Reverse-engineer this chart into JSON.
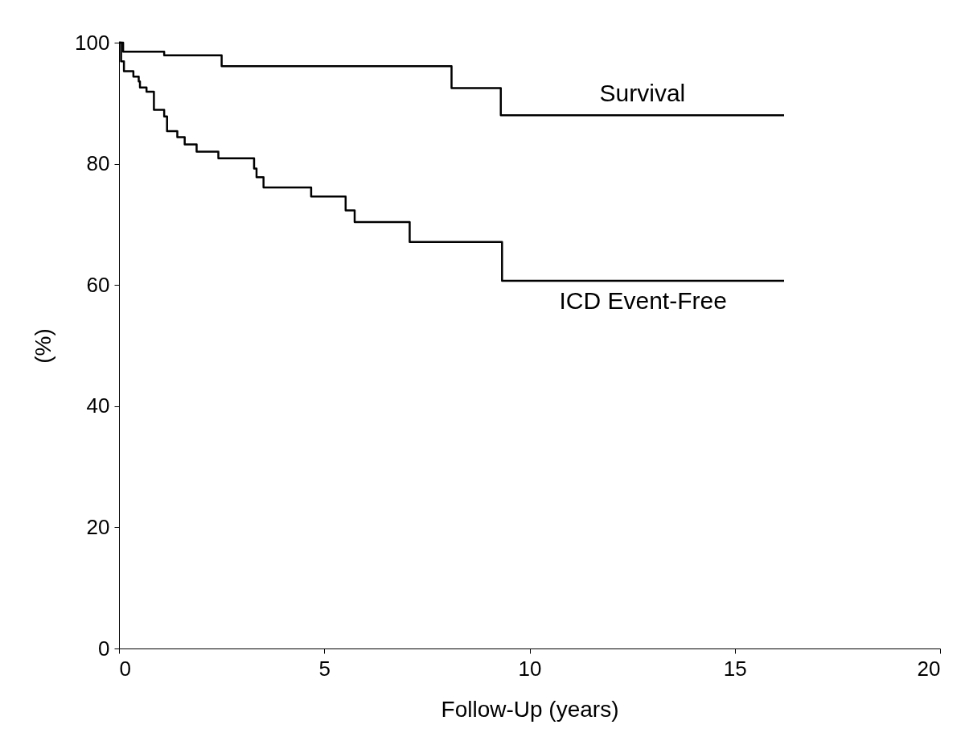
{
  "chart_data": {
    "type": "step",
    "xlabel": "Follow-Up (years)",
    "ylabel": "(%)",
    "xlim": [
      0,
      20
    ],
    "xticks": [
      0,
      5,
      10,
      15,
      20
    ],
    "ylim": [
      0,
      100
    ],
    "yticks": [
      0,
      20,
      40,
      60,
      80,
      100
    ],
    "grid": false,
    "marker": "none",
    "line_style": "solid",
    "series": [
      {
        "name": "Survival",
        "color": "#000000",
        "x": [
          0,
          0.1,
          1.1,
          2.5,
          8.1,
          9.3,
          16.2
        ],
        "values": [
          100,
          98.5,
          97.9,
          96.1,
          92.5,
          88.0,
          88.0
        ]
      },
      {
        "name": "ICD Event-Free",
        "color": "#000000",
        "x": [
          0,
          0.05,
          0.12,
          0.35,
          0.48,
          0.51,
          0.67,
          0.85,
          1.1,
          1.17,
          1.42,
          1.6,
          1.89,
          2.42,
          3.29,
          3.35,
          3.52,
          4.68,
          5.52,
          5.74,
          7.08,
          9.33,
          16.2
        ],
        "values": [
          100,
          96.9,
          95.3,
          94.4,
          93.6,
          92.6,
          91.9,
          88.9,
          87.8,
          85.4,
          84.4,
          83.2,
          82.0,
          80.9,
          79.2,
          77.8,
          76.1,
          74.6,
          72.3,
          70.4,
          67.1,
          60.7,
          60.7
        ]
      }
    ]
  }
}
